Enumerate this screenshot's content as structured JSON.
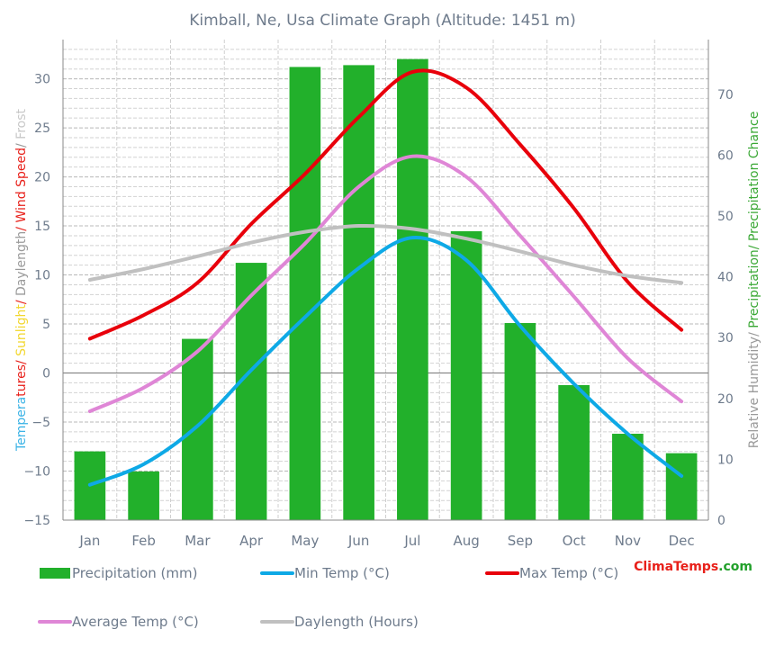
{
  "chart_data": {
    "type": "bar",
    "title": "Kimball, Ne, Usa Climate Graph (Altitude: 1451 m)",
    "categories": [
      "Jan",
      "Feb",
      "Mar",
      "Apr",
      "May",
      "Jun",
      "Jul",
      "Aug",
      "Sep",
      "Oct",
      "Nov",
      "Dec"
    ],
    "y_left": {
      "label_parts": [
        {
          "text": "Tempera",
          "color": "#3bb3e6"
        },
        {
          "text": "tures/ ",
          "color": "#e8201a"
        },
        {
          "text": "Sunlight",
          "color": "#f2d72e"
        },
        {
          "text": "/ ",
          "color": "#e8201a"
        },
        {
          "text": "Daylength",
          "color": "#9a9a9a"
        },
        {
          "text": "/ ",
          "color": "#e8201a"
        },
        {
          "text": "Wind Speed",
          "color": "#e8201a"
        },
        {
          "text": "/ ",
          "color": "#9a9a9a"
        },
        {
          "text": "Frost",
          "color": "#c8c8c8"
        }
      ],
      "ylim": [
        -15,
        34
      ],
      "ticks": [
        -15,
        -10,
        -5,
        0,
        5,
        10,
        15,
        20,
        25,
        30
      ]
    },
    "y_right": {
      "label_parts": [
        {
          "text": "Relative Humidity/ ",
          "color": "#9a9a9a"
        },
        {
          "text": "Precipitation/ Precipitation Chance",
          "color": "#3aa835"
        }
      ],
      "ylim": [
        0,
        79
      ],
      "ticks": [
        0,
        10,
        20,
        30,
        40,
        50,
        60,
        70
      ]
    },
    "grid": true,
    "series": [
      {
        "name": "Precipitation (mm)",
        "kind": "bar",
        "axis": "right",
        "color": "#22b02b",
        "values": [
          11.3,
          8,
          29.8,
          42.3,
          74.5,
          74.8,
          75.8,
          47.5,
          32.4,
          22.2,
          14.2,
          11
        ]
      },
      {
        "name": "Min Temp (°C)",
        "kind": "line",
        "axis": "left",
        "color": "#0ea9e6",
        "values": [
          -11.4,
          -9.3,
          -5.4,
          0.3,
          5.7,
          10.7,
          13.8,
          11.5,
          4.8,
          -1.1,
          -6.2,
          -10.5
        ]
      },
      {
        "name": "Max Temp (°C)",
        "kind": "line",
        "axis": "left",
        "color": "#e8000b",
        "values": [
          3.5,
          5.9,
          9.2,
          15.2,
          20.3,
          26.1,
          30.7,
          29.1,
          23.3,
          16.8,
          9.3,
          4.4
        ]
      },
      {
        "name": "Average Temp (°C)",
        "kind": "line",
        "axis": "left",
        "color": "#df86d6",
        "values": [
          -3.9,
          -1.5,
          2.2,
          7.9,
          13.2,
          19.0,
          22.1,
          20.0,
          14.0,
          7.8,
          1.5,
          -2.9
        ]
      },
      {
        "name": "Daylength (Hours)",
        "kind": "line",
        "axis": "left",
        "color": "#c0c0c0",
        "values": [
          9.5,
          10.6,
          11.9,
          13.3,
          14.4,
          15.0,
          14.7,
          13.7,
          12.4,
          11.0,
          9.9,
          9.2
        ]
      }
    ],
    "legend_position": "bottom"
  },
  "branding": {
    "part1": "Clima",
    "part2": "Temps",
    "part3": ".com"
  }
}
